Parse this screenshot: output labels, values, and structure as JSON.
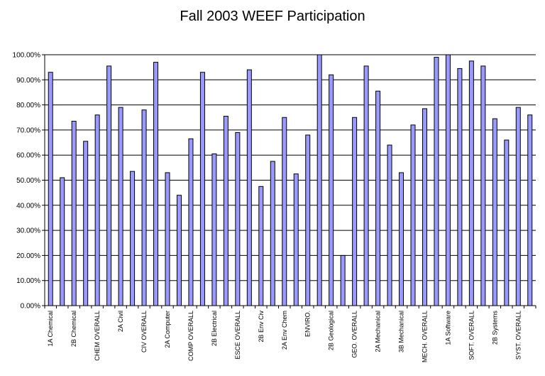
{
  "chart_data": {
    "type": "bar",
    "title": "Fall 2003 WEEF Participation",
    "xlabel": "",
    "ylabel": "",
    "ylim": [
      0,
      1.0
    ],
    "yticks": [
      "0.00%",
      "10.00%",
      "20.00%",
      "30.00%",
      "40.00%",
      "50.00%",
      "60.00%",
      "70.00%",
      "80.00%",
      "90.00%",
      "100.00%"
    ],
    "grid": true,
    "legend": "none",
    "bar_color": "#9999ff",
    "categories": [
      "1A Chemical",
      "",
      "2B Chemical",
      "",
      "CHEM OVERALL",
      "",
      "2A Civil",
      "",
      "CIV OVERALL",
      "",
      "2A Computer",
      "",
      "COMP OVERALL",
      "",
      "2B Electrical",
      "",
      "ESCE OVERALL",
      "",
      "2B Env Civ",
      "",
      "2A Env Chem",
      "",
      "ENVIRO.",
      "",
      "2B Geological",
      "",
      "GEO. OVERALL",
      "",
      "2A Mechanical",
      "",
      "3B Mechanical",
      "",
      "MECH. OVERALL",
      "",
      "1A Software",
      "",
      "SOFT. OVERALL",
      "",
      "2B Systems",
      "",
      "SYST. OVERALL",
      ""
    ],
    "values": [
      0.93,
      0.51,
      0.735,
      0.655,
      0.76,
      0.955,
      0.79,
      0.535,
      0.78,
      0.97,
      0.53,
      0.44,
      0.665,
      0.93,
      0.605,
      0.755,
      0.69,
      0.94,
      0.475,
      0.575,
      0.75,
      0.525,
      0.68,
      1.0,
      0.92,
      0.2,
      0.75,
      0.955,
      0.855,
      0.64,
      0.53,
      0.72,
      0.785,
      0.99,
      1.0,
      0.945,
      0.975,
      0.955,
      0.745,
      0.66,
      0.79,
      0.76
    ]
  }
}
